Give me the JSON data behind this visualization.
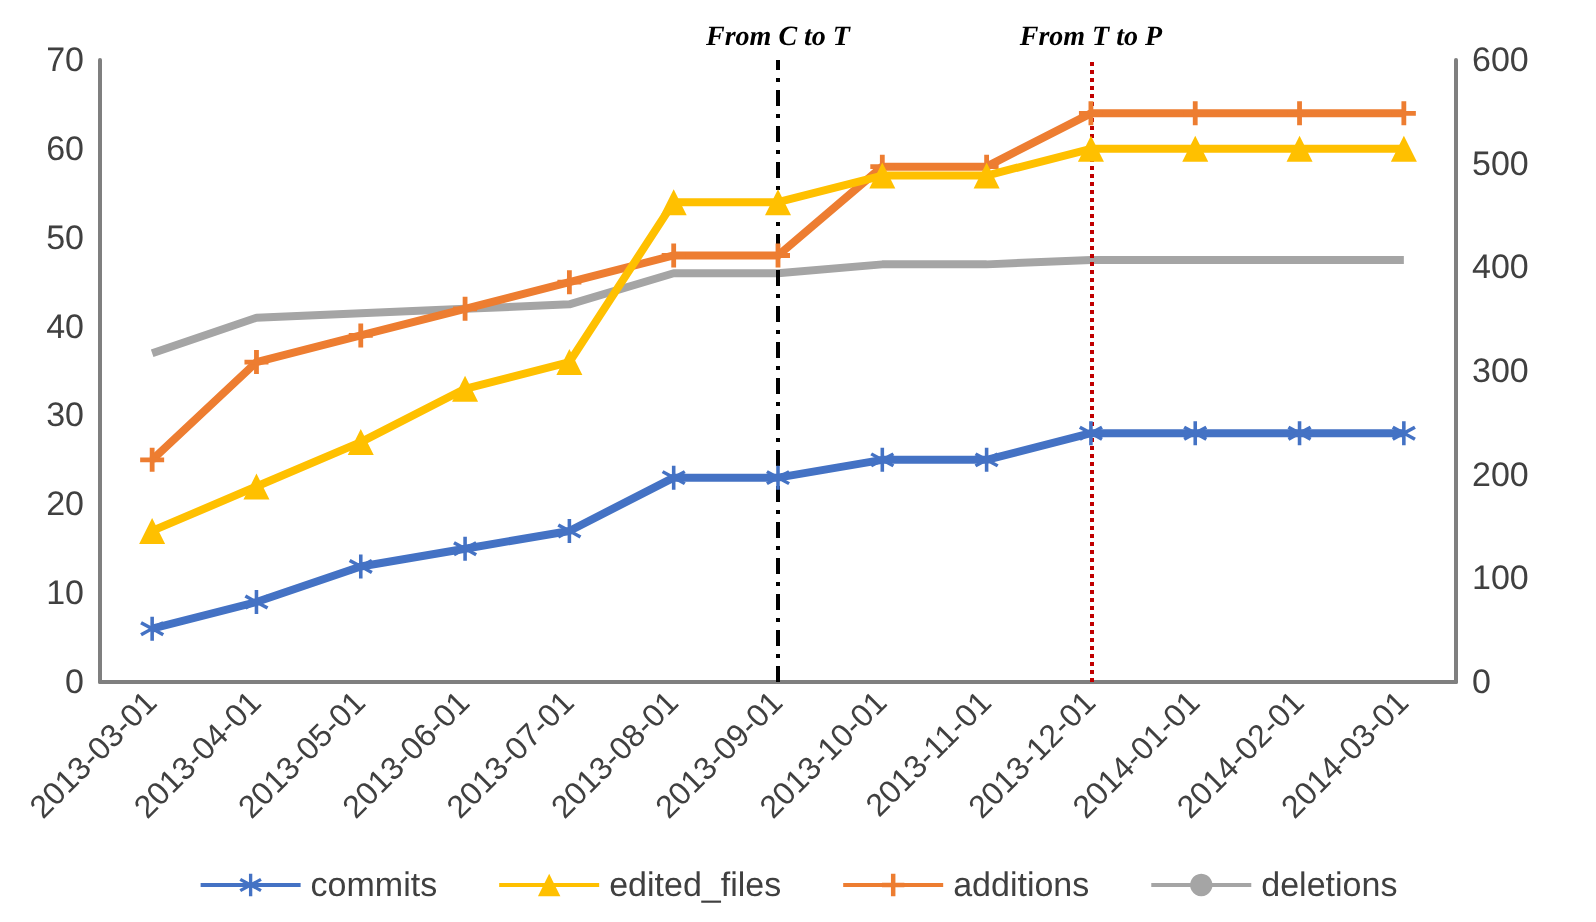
{
  "chart_data": {
    "type": "line",
    "categories": [
      "2013-03-01",
      "2013-04-01",
      "2013-05-01",
      "2013-06-01",
      "2013-07-01",
      "2013-08-01",
      "2013-09-01",
      "2013-10-01",
      "2013-11-01",
      "2013-12-01",
      "2014-01-01",
      "2014-02-01",
      "2014-03-01"
    ],
    "series": [
      {
        "name": "commits",
        "color": "#4472c4",
        "marker": "star",
        "values": [
          6,
          9,
          13,
          15,
          17,
          23,
          23,
          25,
          25,
          28,
          28,
          28,
          28
        ]
      },
      {
        "name": "edited_files",
        "color": "#ffc000",
        "marker": "triangle",
        "values": [
          17,
          22,
          27,
          33,
          36,
          54,
          54,
          57,
          57,
          60,
          60,
          60,
          60
        ]
      },
      {
        "name": "additions",
        "color": "#ed7d31",
        "marker": "cross",
        "values": [
          25,
          36,
          39,
          42,
          45,
          48,
          48,
          58,
          58,
          64,
          64,
          64,
          64
        ]
      },
      {
        "name": "deletions",
        "color": "#a5a5a5",
        "marker": "none",
        "values": [
          37,
          41,
          41.5,
          42,
          42.5,
          46,
          46,
          47,
          47,
          47.5,
          47.5,
          47.5,
          47.5
        ]
      }
    ],
    "ylim": [
      0,
      70
    ],
    "yticks": [
      0,
      10,
      20,
      30,
      40,
      50,
      60,
      70
    ],
    "y2lim": [
      0,
      600
    ],
    "y2ticks": [
      0,
      100,
      200,
      300,
      400,
      500,
      600
    ],
    "ref_lines": [
      {
        "axis": "x",
        "value": "2013-09-01",
        "label": "From C to T",
        "color": "#000000",
        "line_style": "dashed"
      },
      {
        "axis": "x",
        "value": "2013-12-01",
        "label": "From T to P",
        "color": "#c00000",
        "line_style": "dotted"
      }
    ],
    "grid": false,
    "legend": "bottom"
  }
}
